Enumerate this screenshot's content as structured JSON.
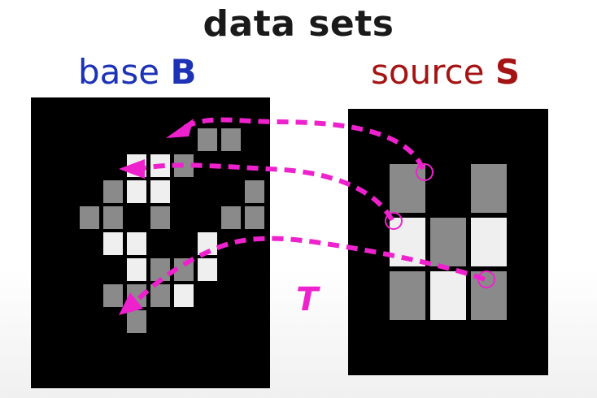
{
  "title": "data sets",
  "base_label": {
    "text": "base ",
    "symbol": "B",
    "color": "#1d32b5"
  },
  "source_label": {
    "text": "source ",
    "symbol": "S",
    "color": "#a51414"
  },
  "transform_label": "T",
  "colors": {
    "panel": "#000000",
    "gray": "#8a8a8a",
    "white": "#efefef",
    "arrow": "#ee22cc"
  },
  "base_grid": {
    "rows": [
      "......GG..",
      "...WWG....",
      "..GWW...G.",
      ".GG.G..GG.",
      "..WW..W...",
      "...WGGW...",
      "..GGGW....",
      "...G......"
    ]
  },
  "source_grid": {
    "rows": [
      "G.G",
      "WGW",
      "GWG"
    ]
  }
}
